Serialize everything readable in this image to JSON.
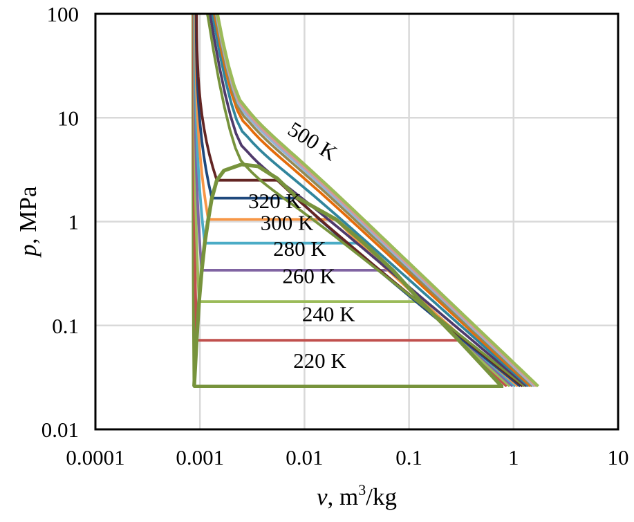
{
  "chart_data": {
    "type": "line",
    "xlabel": "v, m³/kg",
    "xlabel_parts": {
      "var": "v",
      "sep": ", m",
      "sup": "3",
      "unit": "/kg"
    },
    "ylabel": "p, MPa",
    "ylabel_parts": {
      "var": "p",
      "unit": ", MPa"
    },
    "x_scale": "log",
    "y_scale": "log",
    "xlim": [
      0.0001,
      10
    ],
    "ylim": [
      0.01,
      100
    ],
    "x_ticks": [
      "0.0001",
      "0.001",
      "0.01",
      "0.1",
      "1",
      "10"
    ],
    "y_ticks": [
      "0.01",
      "0.1",
      "1",
      "10",
      "100"
    ],
    "grid": true,
    "annotations": [
      "500 K",
      "320 K",
      "300 K",
      "280 K",
      "260 K",
      "240 K",
      "220 K"
    ],
    "dome": {
      "color": "#77933c",
      "liquid": [
        [
          0.00088,
          0.026
        ],
        [
          0.00093,
          0.072
        ],
        [
          0.00098,
          0.17
        ],
        [
          0.00104,
          0.34
        ],
        [
          0.00111,
          0.62
        ],
        [
          0.0012,
          1.05
        ],
        [
          0.0013,
          1.68
        ],
        [
          0.00145,
          2.5
        ],
        [
          0.0017,
          3.1
        ],
        [
          0.0025,
          3.55
        ]
      ],
      "vapor": [
        [
          0.0025,
          3.55
        ],
        [
          0.0036,
          3.4
        ],
        [
          0.0055,
          2.6
        ],
        [
          0.0085,
          1.7
        ],
        [
          0.02,
          1.05
        ],
        [
          0.037,
          0.62
        ],
        [
          0.07,
          0.34
        ],
        [
          0.13,
          0.17
        ],
        [
          0.3,
          0.072
        ],
        [
          0.77,
          0.026
        ]
      ]
    },
    "series": [
      {
        "color": "#77933c",
        "p_sat": 0.026,
        "v_liq": 0.00088,
        "v_vap": 0.77,
        "v_high": 0.8,
        "v_low": 0.00086
      },
      {
        "color": "#c0504d",
        "p_sat": 0.072,
        "v_liq": 0.00093,
        "v_vap": 0.3,
        "v_high": 0.86,
        "v_low": 0.00087
      },
      {
        "color": "#9bbb59",
        "p_sat": 0.17,
        "v_liq": 0.00098,
        "v_vap": 0.13,
        "v_high": 0.92,
        "v_low": 0.00088
      },
      {
        "color": "#8064a2",
        "p_sat": 0.34,
        "v_liq": 0.00104,
        "v_vap": 0.07,
        "v_high": 0.98,
        "v_low": 0.00089
      },
      {
        "color": "#4bacc6",
        "p_sat": 0.62,
        "v_liq": 0.00111,
        "v_vap": 0.037,
        "v_high": 1.04,
        "v_low": 0.0009
      },
      {
        "color": "#f79646",
        "p_sat": 1.05,
        "v_liq": 0.0012,
        "v_vap": 0.02,
        "v_high": 1.1,
        "v_low": 0.00091
      },
      {
        "color": "#1f497d",
        "p_sat": 1.68,
        "v_liq": 0.0013,
        "v_vap": 0.0085,
        "v_high": 1.16,
        "v_low": 0.00092
      },
      {
        "color": "#632523",
        "p_sat": 2.5,
        "v_liq": 0.00145,
        "v_vap": 0.0055,
        "v_high": 1.22,
        "v_low": 0.00093
      },
      {
        "color": "#77933c",
        "p_infl": 3.5,
        "v_high": 1.28,
        "v_low": 0.00094
      },
      {
        "color": "#4f3a6b",
        "p_infl": 5.0,
        "v_high": 1.34,
        "v_low": 0.00095
      },
      {
        "color": "#31859c",
        "p_infl": 7.0,
        "v_high": 1.4,
        "v_low": 0.00096
      },
      {
        "color": "#e46c0a",
        "p_infl": 9.0,
        "v_high": 1.46,
        "v_low": 0.00097
      },
      {
        "color": "#948a54",
        "p_infl": 10.2,
        "v_high": 1.52,
        "v_low": 0.00098
      },
      {
        "color": "#95b3d7",
        "p_infl": 11.2,
        "v_high": 1.58,
        "v_low": 0.00099
      },
      {
        "color": "#d99694",
        "p_infl": 12.0,
        "v_high": 1.64,
        "v_low": 0.001
      },
      {
        "color": "#9bbb59",
        "p_infl": 12.8,
        "v_high": 1.72,
        "v_low": 0.00101
      }
    ],
    "label_positions": [
      {
        "text": "500 K",
        "v": 0.011,
        "p": 5.2,
        "angle": 32
      },
      {
        "text": "320 K",
        "v": 0.0052,
        "p": 1.35,
        "angle": 0
      },
      {
        "text": "300 K",
        "v": 0.0068,
        "p": 0.83,
        "angle": 0
      },
      {
        "text": "280 K",
        "v": 0.009,
        "p": 0.47,
        "angle": 0
      },
      {
        "text": "260 K",
        "v": 0.011,
        "p": 0.255,
        "angle": 0
      },
      {
        "text": "240 K",
        "v": 0.017,
        "p": 0.11,
        "angle": 0
      },
      {
        "text": "220 K",
        "v": 0.014,
        "p": 0.039,
        "angle": 0
      }
    ]
  }
}
